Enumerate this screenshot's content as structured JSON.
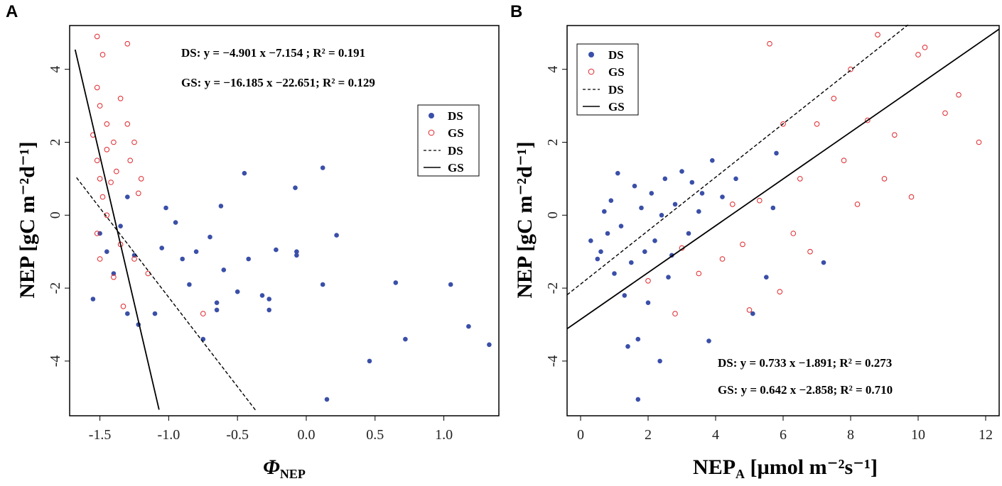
{
  "panels": [
    {
      "letter": "A",
      "xlabel_main": "Φ",
      "xlabel_sub": "NEP",
      "xlabel_suffix": "",
      "ylabel": "NEP [gC m⁻²d⁻¹]",
      "xticks": [
        "-1.5",
        "-1.0",
        "-0.5",
        "0.0",
        "0.5",
        "1.0"
      ],
      "yticks": [
        "-4",
        "-2",
        "0",
        "2",
        "4"
      ],
      "equations": {
        "ds": "DS: y = −4.901 x  −7.154  ; R² = 0.191",
        "gs": "GS: y = −16.185 x −22.651; R² = 0.129"
      },
      "legend": [
        "DS",
        "GS",
        "DS",
        "GS"
      ]
    },
    {
      "letter": "B",
      "xlabel_main": "NEP",
      "xlabel_sub": "A",
      "xlabel_suffix": " [µmol m⁻²s⁻¹]",
      "ylabel": "NEP [gC m⁻²d⁻¹]",
      "xticks": [
        "0",
        "2",
        "4",
        "6",
        "8",
        "10",
        "12"
      ],
      "yticks": [
        "-4",
        "-2",
        "0",
        "2",
        "4"
      ],
      "equations": {
        "ds": "DS: y = 0.733 x −1.891; R² = 0.273",
        "gs": "GS: y = 0.642 x −2.858; R² = 0.710"
      },
      "legend": [
        "DS",
        "GS",
        "DS",
        "GS"
      ]
    }
  ],
  "colors": {
    "ds": "#3a4fa8",
    "gs": "#e0242a",
    "line": "#000000"
  },
  "chart_data": [
    {
      "type": "scatter",
      "title": "",
      "xlabel": "Φ_NEP",
      "ylabel": "NEP [gC m-2 d-1]",
      "xlim": [
        -1.72,
        1.4
      ],
      "ylim": [
        -5.5,
        5.2
      ],
      "series": [
        {
          "name": "DS",
          "marker": "filled-circle",
          "points": [
            [
              -1.55,
              -2.3
            ],
            [
              -1.3,
              -2.7
            ],
            [
              -1.22,
              -3.0
            ],
            [
              -1.1,
              -2.7
            ],
            [
              -0.75,
              -3.4
            ],
            [
              -0.45,
              1.15
            ],
            [
              0.12,
              1.3
            ],
            [
              -0.08,
              0.75
            ],
            [
              0.22,
              -0.55
            ],
            [
              -0.07,
              -1.0
            ],
            [
              -0.07,
              -1.1
            ],
            [
              -0.22,
              -0.95
            ],
            [
              -0.32,
              -2.2
            ],
            [
              -0.27,
              -2.3
            ],
            [
              -0.27,
              -2.6
            ],
            [
              -0.65,
              -2.6
            ],
            [
              -0.65,
              -2.4
            ],
            [
              -0.85,
              -1.9
            ],
            [
              0.15,
              -5.05
            ],
            [
              0.46,
              -4.0
            ],
            [
              0.65,
              -1.85
            ],
            [
              0.72,
              -3.4
            ],
            [
              1.05,
              -1.9
            ],
            [
              1.18,
              -3.05
            ],
            [
              1.33,
              -3.55
            ],
            [
              0.12,
              -1.9
            ],
            [
              -0.42,
              -1.2
            ],
            [
              -0.5,
              -2.1
            ],
            [
              -0.6,
              -1.5
            ],
            [
              -0.7,
              -0.6
            ],
            [
              -0.8,
              -1.0
            ],
            [
              -0.9,
              -1.2
            ],
            [
              -0.62,
              0.25
            ],
            [
              -1.02,
              0.2
            ],
            [
              -1.25,
              -1.1
            ],
            [
              -1.45,
              -1.0
            ],
            [
              -1.5,
              -0.5
            ],
            [
              -1.35,
              -0.3
            ],
            [
              -1.3,
              0.5
            ],
            [
              -1.4,
              -1.6
            ],
            [
              -1.05,
              -0.9
            ],
            [
              -0.95,
              -0.2
            ]
          ]
        },
        {
          "name": "GS",
          "marker": "open-circle",
          "points": [
            [
              -1.52,
              4.9
            ],
            [
              -1.48,
              4.4
            ],
            [
              -1.3,
              4.7
            ],
            [
              -1.52,
              3.5
            ],
            [
              -1.5,
              3.0
            ],
            [
              -1.45,
              2.5
            ],
            [
              -1.4,
              2.0
            ],
            [
              -1.35,
              3.2
            ],
            [
              -1.3,
              2.5
            ],
            [
              -1.25,
              2.0
            ],
            [
              -1.2,
              1.0
            ],
            [
              -1.55,
              2.2
            ],
            [
              -1.52,
              1.5
            ],
            [
              -1.5,
              1.0
            ],
            [
              -1.48,
              0.5
            ],
            [
              -1.45,
              0.0
            ],
            [
              -1.52,
              -0.5
            ],
            [
              -1.5,
              -1.2
            ],
            [
              -1.4,
              -1.7
            ],
            [
              -1.33,
              -2.5
            ],
            [
              -1.15,
              -1.6
            ],
            [
              -0.75,
              -2.7
            ],
            [
              -1.45,
              1.8
            ],
            [
              -1.42,
              0.9
            ],
            [
              -1.38,
              1.2
            ],
            [
              -1.28,
              1.5
            ],
            [
              -1.22,
              0.6
            ],
            [
              -1.35,
              -0.8
            ],
            [
              -1.25,
              -1.2
            ]
          ]
        }
      ],
      "fits": [
        {
          "name": "DS",
          "style": "dashed",
          "slope": -4.901,
          "intercept": -7.154,
          "x_range": [
            -1.67,
            -0.37
          ],
          "r2": 0.191
        },
        {
          "name": "GS",
          "style": "solid",
          "slope": -16.185,
          "intercept": -22.651,
          "x_range": [
            -1.68,
            -1.07
          ],
          "r2": 0.129
        }
      ],
      "legend_position": "right"
    },
    {
      "type": "scatter",
      "title": "",
      "xlabel": "NEP_A [µmol m-2 s-1]",
      "ylabel": "NEP [gC m-2 d-1]",
      "xlim": [
        -0.4,
        12.4
      ],
      "ylim": [
        -5.5,
        5.2
      ],
      "series": [
        {
          "name": "DS",
          "marker": "filled-circle",
          "points": [
            [
              0.3,
              -0.7
            ],
            [
              0.5,
              -1.2
            ],
            [
              0.7,
              0.1
            ],
            [
              0.8,
              -0.5
            ],
            [
              1.0,
              -1.6
            ],
            [
              1.1,
              1.15
            ],
            [
              1.2,
              -0.3
            ],
            [
              1.3,
              -2.2
            ],
            [
              1.4,
              -3.6
            ],
            [
              1.5,
              -1.3
            ],
            [
              1.6,
              0.8
            ],
            [
              1.7,
              -3.4
            ],
            [
              1.7,
              -5.05
            ],
            [
              1.8,
              0.2
            ],
            [
              1.9,
              -1.0
            ],
            [
              2.0,
              -2.4
            ],
            [
              2.1,
              0.6
            ],
            [
              2.2,
              -0.7
            ],
            [
              2.35,
              -4.0
            ],
            [
              2.5,
              1.0
            ],
            [
              2.6,
              -1.7
            ],
            [
              2.8,
              0.3
            ],
            [
              3.0,
              1.2
            ],
            [
              3.2,
              -0.5
            ],
            [
              3.3,
              0.9
            ],
            [
              3.5,
              0.1
            ],
            [
              3.8,
              -3.45
            ],
            [
              3.9,
              1.5
            ],
            [
              4.2,
              0.5
            ],
            [
              4.6,
              1.0
            ],
            [
              5.1,
              -2.7
            ],
            [
              5.5,
              -1.7
            ],
            [
              5.7,
              0.2
            ],
            [
              5.8,
              1.7
            ],
            [
              7.2,
              -1.3
            ],
            [
              0.6,
              -1.0
            ],
            [
              0.9,
              0.4
            ],
            [
              2.4,
              0.0
            ],
            [
              2.7,
              -1.1
            ],
            [
              3.6,
              0.6
            ]
          ]
        },
        {
          "name": "GS",
          "marker": "open-circle",
          "points": [
            [
              5.6,
              4.7
            ],
            [
              8.8,
              4.95
            ],
            [
              10.2,
              4.6
            ],
            [
              10.0,
              4.4
            ],
            [
              11.2,
              3.3
            ],
            [
              11.8,
              2.0
            ],
            [
              10.8,
              2.8
            ],
            [
              9.8,
              0.5
            ],
            [
              9.0,
              1.0
            ],
            [
              8.0,
              4.0
            ],
            [
              7.5,
              3.2
            ],
            [
              7.0,
              2.5
            ],
            [
              6.5,
              1.0
            ],
            [
              6.0,
              2.5
            ],
            [
              5.0,
              -2.6
            ],
            [
              5.9,
              -2.1
            ],
            [
              6.3,
              -0.5
            ],
            [
              4.8,
              -0.8
            ],
            [
              4.2,
              -1.2
            ],
            [
              3.5,
              -1.6
            ],
            [
              2.8,
              -2.7
            ],
            [
              2.0,
              -1.8
            ],
            [
              7.8,
              1.5
            ],
            [
              8.5,
              2.6
            ],
            [
              9.3,
              2.2
            ],
            [
              6.8,
              -1.0
            ],
            [
              5.3,
              0.4
            ],
            [
              4.5,
              0.3
            ],
            [
              3.0,
              -0.9
            ],
            [
              8.2,
              0.3
            ]
          ]
        }
      ],
      "fits": [
        {
          "name": "DS",
          "style": "dashed",
          "slope": 0.733,
          "intercept": -1.891,
          "x_range": [
            -0.4,
            9.7
          ],
          "r2": 0.273
        },
        {
          "name": "GS",
          "style": "solid",
          "slope": 0.642,
          "intercept": -2.858,
          "x_range": [
            -0.4,
            12.4
          ],
          "r2": 0.71
        }
      ],
      "legend_position": "top-left"
    }
  ]
}
